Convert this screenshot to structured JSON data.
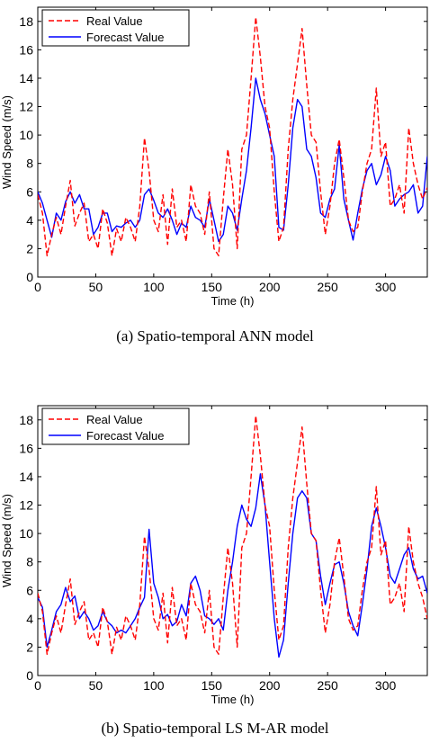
{
  "chart_data": [
    {
      "type": "line",
      "caption": "(a)  Spatio-temporal ANN model",
      "xlabel": "Time (h)",
      "ylabel": "Wind Speed (m/s)",
      "xlim": [
        0,
        336
      ],
      "ylim": [
        0,
        19
      ],
      "xticks": [
        0,
        50,
        100,
        150,
        200,
        250,
        300
      ],
      "yticks": [
        0,
        2,
        4,
        6,
        8,
        10,
        12,
        14,
        16,
        18
      ],
      "legend_position": "top-left",
      "series": [
        {
          "name": "Real Value",
          "color": "#ff0000",
          "dash": "dashed",
          "x": [
            0,
            4,
            8,
            12,
            16,
            20,
            24,
            28,
            32,
            36,
            40,
            44,
            48,
            52,
            56,
            60,
            64,
            68,
            72,
            76,
            80,
            84,
            88,
            92,
            96,
            100,
            104,
            108,
            112,
            116,
            120,
            124,
            128,
            132,
            136,
            140,
            144,
            148,
            152,
            156,
            160,
            164,
            168,
            172,
            176,
            180,
            184,
            188,
            192,
            196,
            200,
            204,
            208,
            212,
            216,
            220,
            224,
            228,
            232,
            236,
            240,
            244,
            248,
            252,
            256,
            260,
            264,
            268,
            272,
            276,
            280,
            284,
            288,
            292,
            296,
            300,
            304,
            308,
            312,
            316,
            320,
            324,
            328,
            332,
            336
          ],
          "values": [
            5.8,
            4.5,
            1.5,
            3.0,
            4.2,
            3.0,
            5.0,
            6.8,
            3.6,
            4.5,
            5.2,
            2.5,
            3.0,
            2.0,
            4.8,
            3.8,
            1.5,
            3.4,
            2.5,
            4.2,
            3.5,
            2.5,
            5.0,
            9.8,
            7.5,
            4.0,
            3.2,
            5.8,
            2.3,
            6.2,
            3.5,
            4.0,
            2.5,
            6.5,
            5.0,
            4.5,
            3.0,
            6.0,
            2.0,
            1.5,
            5.5,
            9.0,
            6.5,
            2.0,
            9.0,
            10.0,
            14.0,
            18.3,
            15.5,
            12.0,
            10.5,
            6.0,
            2.5,
            3.5,
            9.0,
            12.5,
            15.0,
            17.5,
            13.5,
            10.0,
            9.5,
            6.0,
            3.0,
            5.0,
            8.0,
            9.7,
            7.0,
            4.0,
            3.2,
            3.5,
            6.0,
            8.0,
            9.0,
            13.3,
            8.5,
            9.5,
            5.0,
            5.5,
            6.5,
            4.5,
            10.5,
            8.0,
            6.5,
            5.5,
            6.3
          ]
        },
        {
          "name": "Forecast Value",
          "color": "#0000ff",
          "dash": "solid",
          "x": [
            0,
            4,
            8,
            12,
            16,
            20,
            24,
            28,
            32,
            36,
            40,
            44,
            48,
            52,
            56,
            60,
            64,
            68,
            72,
            76,
            80,
            84,
            88,
            92,
            96,
            100,
            104,
            108,
            112,
            116,
            120,
            124,
            128,
            132,
            136,
            140,
            144,
            148,
            152,
            156,
            160,
            164,
            168,
            172,
            176,
            180,
            184,
            188,
            192,
            196,
            200,
            204,
            208,
            212,
            216,
            220,
            224,
            228,
            232,
            236,
            240,
            244,
            248,
            252,
            256,
            260,
            264,
            268,
            272,
            276,
            280,
            284,
            288,
            292,
            296,
            300,
            304,
            308,
            312,
            316,
            320,
            324,
            328,
            332,
            336
          ],
          "values": [
            6.0,
            5.2,
            4.0,
            2.8,
            4.5,
            4.0,
            5.3,
            6.0,
            5.2,
            5.8,
            4.8,
            4.8,
            3.0,
            3.5,
            4.5,
            4.5,
            3.2,
            3.6,
            3.5,
            3.8,
            4.0,
            3.5,
            4.0,
            5.8,
            6.2,
            5.4,
            4.5,
            4.2,
            4.8,
            4.0,
            3.0,
            3.8,
            3.5,
            5.0,
            4.2,
            4.0,
            3.5,
            5.5,
            4.0,
            2.5,
            3.0,
            5.0,
            4.5,
            3.3,
            5.5,
            7.5,
            10.5,
            14.0,
            12.5,
            11.5,
            10.0,
            8.5,
            3.5,
            3.3,
            6.5,
            10.5,
            12.5,
            12.0,
            9.0,
            8.5,
            7.0,
            4.5,
            4.2,
            5.5,
            6.2,
            9.3,
            5.5,
            4.0,
            2.6,
            4.5,
            6.2,
            7.5,
            8.0,
            6.5,
            7.2,
            8.5,
            7.5,
            5.0,
            5.5,
            5.8,
            6.0,
            6.5,
            4.5,
            5.0,
            8.5
          ]
        }
      ]
    },
    {
      "type": "line",
      "caption": "(b)  Spatio-temporal LS M-AR model",
      "xlabel": "Time (h)",
      "ylabel": "Wind Speed (m/s)",
      "xlim": [
        0,
        336
      ],
      "ylim": [
        0,
        19
      ],
      "xticks": [
        0,
        50,
        100,
        150,
        200,
        250,
        300
      ],
      "yticks": [
        0,
        2,
        4,
        6,
        8,
        10,
        12,
        14,
        16,
        18
      ],
      "legend_position": "top-left",
      "series": [
        {
          "name": "Real Value",
          "color": "#ff0000",
          "dash": "dashed",
          "x": [
            0,
            4,
            8,
            12,
            16,
            20,
            24,
            28,
            32,
            36,
            40,
            44,
            48,
            52,
            56,
            60,
            64,
            68,
            72,
            76,
            80,
            84,
            88,
            92,
            96,
            100,
            104,
            108,
            112,
            116,
            120,
            124,
            128,
            132,
            136,
            140,
            144,
            148,
            152,
            156,
            160,
            164,
            168,
            172,
            176,
            180,
            184,
            188,
            192,
            196,
            200,
            204,
            208,
            212,
            216,
            220,
            224,
            228,
            232,
            236,
            240,
            244,
            248,
            252,
            256,
            260,
            264,
            268,
            272,
            276,
            280,
            284,
            288,
            292,
            296,
            300,
            304,
            308,
            312,
            316,
            320,
            324,
            328,
            332,
            336
          ],
          "values": [
            5.8,
            4.5,
            1.5,
            3.0,
            4.2,
            3.0,
            5.0,
            6.8,
            3.6,
            4.5,
            5.2,
            2.5,
            3.0,
            2.0,
            4.8,
            3.8,
            1.5,
            3.4,
            2.5,
            4.2,
            3.5,
            2.5,
            5.0,
            9.8,
            7.5,
            4.0,
            3.2,
            5.8,
            2.3,
            6.2,
            3.5,
            4.0,
            2.5,
            6.5,
            5.0,
            4.5,
            3.0,
            6.0,
            2.0,
            1.5,
            5.5,
            9.0,
            6.5,
            2.0,
            9.0,
            10.0,
            14.0,
            18.3,
            15.5,
            12.0,
            10.5,
            6.0,
            2.5,
            3.5,
            9.0,
            12.5,
            15.0,
            17.5,
            13.5,
            10.0,
            9.5,
            6.0,
            3.0,
            5.0,
            8.0,
            9.7,
            7.0,
            4.0,
            3.2,
            3.5,
            6.0,
            8.0,
            9.0,
            13.3,
            8.5,
            9.5,
            5.0,
            5.5,
            6.5,
            4.5,
            10.5,
            8.0,
            6.5,
            5.5,
            4.0
          ]
        },
        {
          "name": "Forecast Value",
          "color": "#0000ff",
          "dash": "solid",
          "x": [
            0,
            4,
            8,
            12,
            16,
            20,
            24,
            28,
            32,
            36,
            40,
            44,
            48,
            52,
            56,
            60,
            64,
            68,
            72,
            76,
            80,
            84,
            88,
            92,
            96,
            100,
            104,
            108,
            112,
            116,
            120,
            124,
            128,
            132,
            136,
            140,
            144,
            148,
            152,
            156,
            160,
            164,
            168,
            172,
            176,
            180,
            184,
            188,
            192,
            196,
            200,
            204,
            208,
            212,
            216,
            220,
            224,
            228,
            232,
            236,
            240,
            244,
            248,
            252,
            256,
            260,
            264,
            268,
            272,
            276,
            280,
            284,
            288,
            292,
            296,
            300,
            304,
            308,
            312,
            316,
            320,
            324,
            328,
            332,
            336
          ],
          "values": [
            5.5,
            4.8,
            2.0,
            3.2,
            4.5,
            5.0,
            6.2,
            5.2,
            5.6,
            4.0,
            4.5,
            4.0,
            3.2,
            3.5,
            4.5,
            3.8,
            3.5,
            3.0,
            3.2,
            3.0,
            3.5,
            4.0,
            4.8,
            5.5,
            10.3,
            6.5,
            5.5,
            4.0,
            4.3,
            3.5,
            3.8,
            5.0,
            4.2,
            6.5,
            7.0,
            6.0,
            4.2,
            4.0,
            3.6,
            4.0,
            3.2,
            6.0,
            8.0,
            10.5,
            12.0,
            11.0,
            10.5,
            11.8,
            14.2,
            12.0,
            8.0,
            4.0,
            1.3,
            2.5,
            6.5,
            10.0,
            12.5,
            13.0,
            12.5,
            10.0,
            9.5,
            7.0,
            5.0,
            6.5,
            7.8,
            8.0,
            6.5,
            4.5,
            3.5,
            2.8,
            5.0,
            7.5,
            10.5,
            11.8,
            10.5,
            9.0,
            7.0,
            6.5,
            7.5,
            8.5,
            9.0,
            7.5,
            6.8,
            7.0,
            5.8
          ]
        }
      ]
    }
  ]
}
